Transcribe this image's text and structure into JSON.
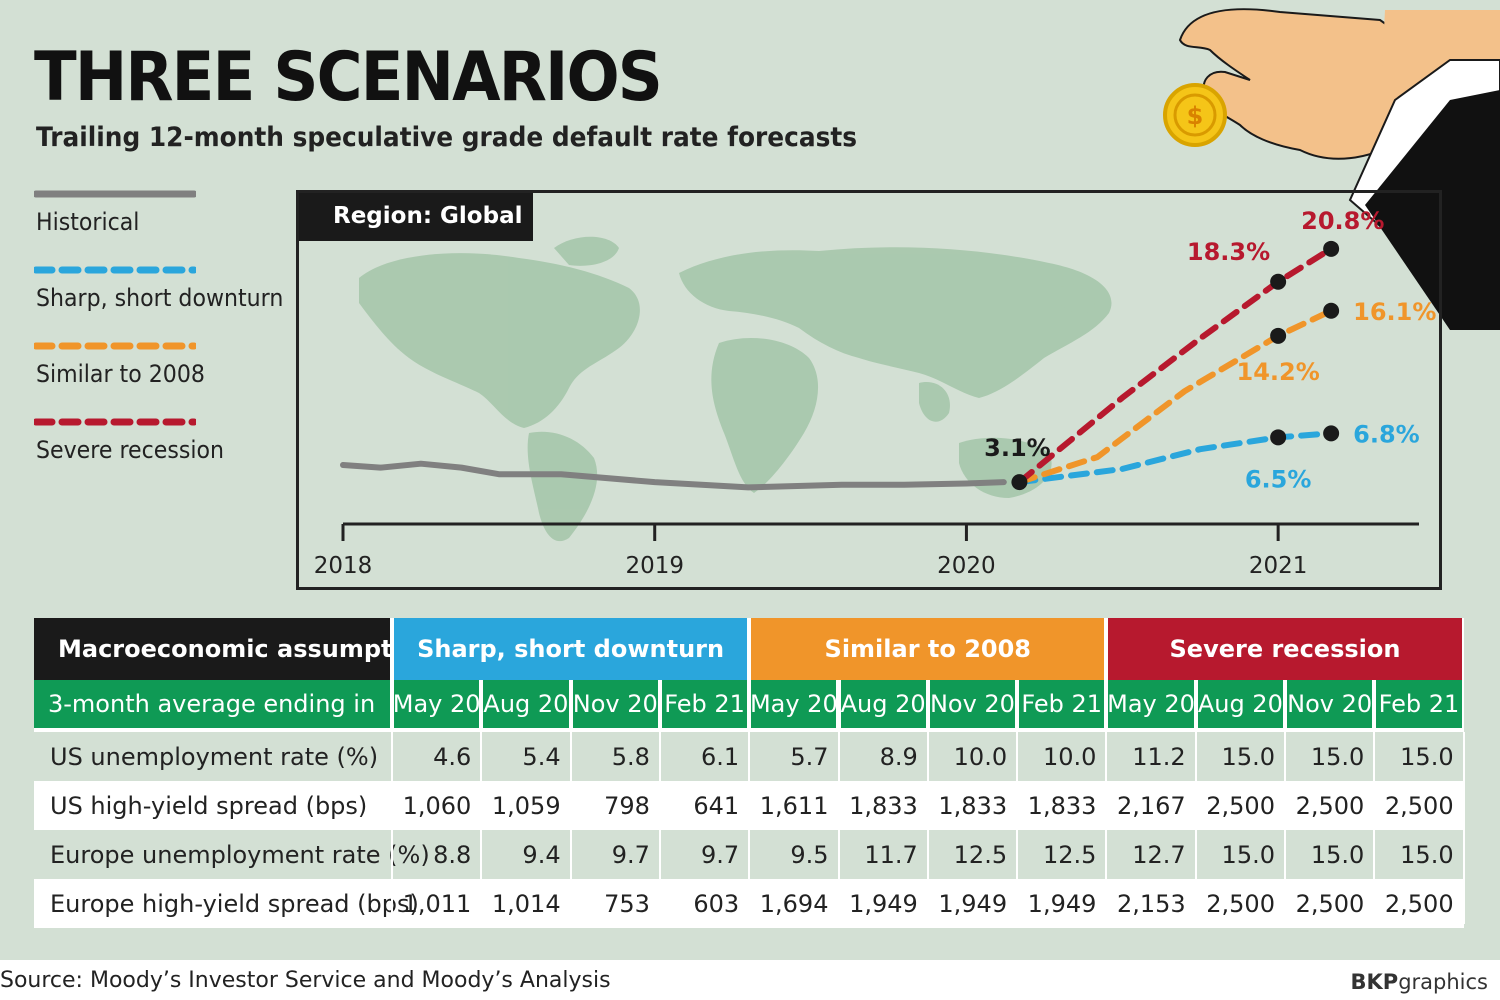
{
  "title": "THREE SCENARIOS",
  "subtitle": "Trailing 12-month speculative grade default rate forecasts",
  "legend": [
    {
      "label": "Historical",
      "color": "#808080",
      "style": "solid"
    },
    {
      "label": "Sharp, short downturn",
      "color": "#2aa6dc",
      "style": "dashed"
    },
    {
      "label": "Similar to 2008",
      "color": "#f0952a",
      "style": "dashed"
    },
    {
      "label": "Severe recession",
      "color": "#b7192e",
      "style": "dashed"
    }
  ],
  "region_label": "Region: Global",
  "chart_data": {
    "type": "line",
    "x_axis_ticks": [
      "2018",
      "2019",
      "2020",
      "2021"
    ],
    "xlim": [
      2018.0,
      2021.5
    ],
    "series": [
      {
        "name": "Historical",
        "color": "#808080",
        "style": "solid",
        "x": [
          2018.0,
          2018.12,
          2018.25,
          2018.38,
          2018.5,
          2018.7,
          2019.0,
          2019.3,
          2019.6,
          2019.8,
          2020.0,
          2020.12
        ],
        "y": [
          4.4,
          4.2,
          4.5,
          4.2,
          3.7,
          3.7,
          3.1,
          2.7,
          2.9,
          2.9,
          3.0,
          3.1
        ]
      },
      {
        "name": "Sharp, short downturn",
        "color": "#2aa6dc",
        "style": "dashed",
        "x": [
          2020.17,
          2020.5,
          2020.75,
          2021.0,
          2021.17
        ],
        "y": [
          3.1,
          4.1,
          5.6,
          6.5,
          6.8
        ],
        "labels": [
          {
            "x": 2021.0,
            "text": "6.5%"
          },
          {
            "x": 2021.17,
            "text": "6.8%"
          }
        ]
      },
      {
        "name": "Similar to 2008",
        "color": "#f0952a",
        "style": "dashed",
        "x": [
          2020.17,
          2020.42,
          2020.7,
          2021.0,
          2021.17
        ],
        "y": [
          3.1,
          5.0,
          10.0,
          14.2,
          16.1
        ],
        "labels": [
          {
            "x": 2021.0,
            "text": "14.2%"
          },
          {
            "x": 2021.17,
            "text": "16.1%"
          }
        ]
      },
      {
        "name": "Severe recession",
        "color": "#b7192e",
        "style": "dashed",
        "x": [
          2020.17,
          2020.5,
          2020.75,
          2021.0,
          2021.17
        ],
        "y": [
          3.1,
          9.5,
          14.0,
          18.3,
          20.8
        ],
        "labels": [
          {
            "x": 2021.0,
            "text": "18.3%"
          },
          {
            "x": 2021.17,
            "text": "20.8%"
          }
        ]
      }
    ],
    "start_point": {
      "x": 2020.17,
      "y": 3.1,
      "text": "3.1%"
    },
    "ylim": [
      0,
      22
    ]
  },
  "table": {
    "assumption_header": "Macroeconomic assumption",
    "period_header": "3-month average ending in",
    "groups": [
      {
        "name": "Sharp, short downturn",
        "color": "#2aa6dc"
      },
      {
        "name": "Similar to 2008",
        "color": "#f0952a"
      },
      {
        "name": "Severe recession",
        "color": "#b7192e"
      }
    ],
    "periods": [
      "May 20",
      "Aug 20",
      "Nov 20",
      "Feb 21",
      "May 20",
      "Aug 20",
      "Nov 20",
      "Feb 21",
      "May 20",
      "Aug 20",
      "Nov 20",
      "Feb 21"
    ],
    "green": "#0f9a55",
    "rows": [
      {
        "label": "US unemployment rate (%)",
        "values": [
          "4.6",
          "5.4",
          "5.8",
          "6.1",
          "5.7",
          "8.9",
          "10.0",
          "10.0",
          "11.2",
          "15.0",
          "15.0",
          "15.0"
        ]
      },
      {
        "label": "US high-yield spread (bps)",
        "values": [
          "1,060",
          "1,059",
          "798",
          "641",
          "1,611",
          "1,833",
          "1,833",
          "1,833",
          "2,167",
          "2,500",
          "2,500",
          "2,500"
        ]
      },
      {
        "label": "Europe unemployment rate (%)",
        "values": [
          "8.8",
          "9.4",
          "9.7",
          "9.7",
          "9.5",
          "11.7",
          "12.5",
          "12.5",
          "12.7",
          "15.0",
          "15.0",
          "15.0"
        ]
      },
      {
        "label": "Europe high-yield spread (bps)",
        "values": [
          "1,011",
          "1,014",
          "753",
          "603",
          "1,694",
          "1,949",
          "1,949",
          "1,949",
          "2,153",
          "2,500",
          "2,500",
          "2,500"
        ]
      }
    ]
  },
  "source": "Source: Moody’s Investor Service and Moody’s Analysis",
  "credit_bold": "BKP",
  "credit_rest": "graphics"
}
